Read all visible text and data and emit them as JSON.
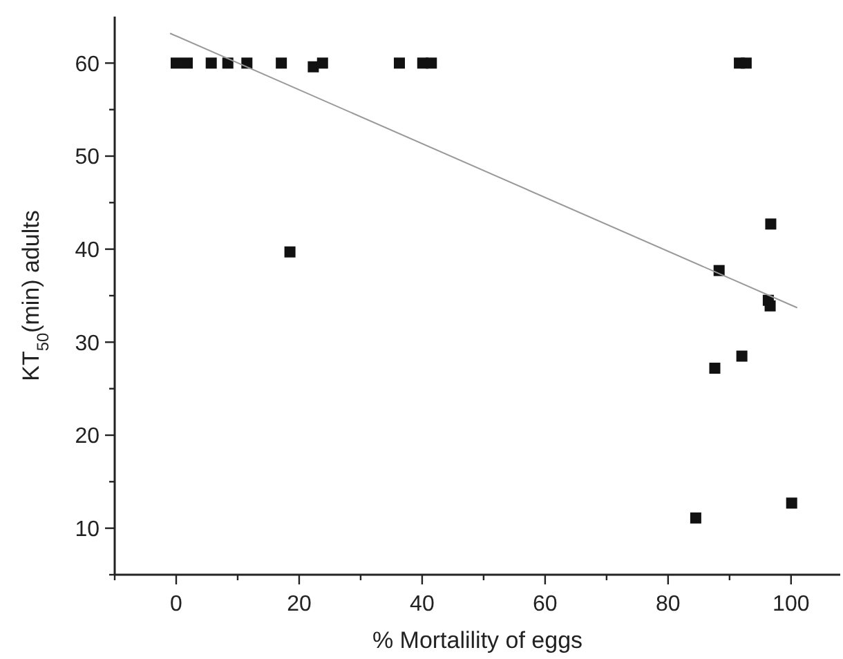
{
  "chart_data": {
    "type": "scatter",
    "xlabel": "% Mortalility of eggs",
    "ylabel": "KT$_{50}$(min) adults",
    "xlim": [
      -10,
      108
    ],
    "ylim": [
      5,
      65
    ],
    "xticks": [
      {
        "value": -10,
        "label": null
      },
      0,
      {
        "value": 10,
        "label": null
      },
      20,
      {
        "value": 30,
        "label": null
      },
      40,
      {
        "value": 50,
        "label": null
      },
      60,
      {
        "value": 70,
        "label": null
      },
      80,
      {
        "value": 90,
        "label": null
      },
      100
    ],
    "yticks": [
      {
        "value": 5,
        "label": null
      },
      10,
      {
        "value": 15,
        "label": null
      },
      20,
      {
        "value": 25,
        "label": null
      },
      30,
      {
        "value": 35,
        "label": null
      },
      40,
      {
        "value": 45,
        "label": null
      },
      50,
      {
        "value": 55,
        "label": null
      },
      60
    ],
    "grid": false,
    "marker": "square",
    "series": [
      {
        "color": "#111111",
        "x": [
          0,
          1.8,
          5.7,
          8.4,
          11.5,
          17.1,
          22.3,
          23.8,
          36.3,
          40.1,
          41.5,
          18.5,
          91.6,
          92.7,
          96.7,
          88.3,
          96.3,
          96.6,
          87.6,
          92.0,
          84.5,
          100.1
        ],
        "values": [
          60,
          60,
          60,
          60,
          60,
          60,
          59.6,
          60,
          60,
          60,
          60,
          39.7,
          60,
          60,
          42.7,
          37.7,
          34.5,
          33.9,
          27.2,
          28.5,
          11.1,
          12.7
        ]
      },
      {
        "type": "line",
        "color": "#999999",
        "marker": "none",
        "x": [
          -1,
          101
        ],
        "values": [
          63.2,
          33.7
        ]
      }
    ]
  }
}
